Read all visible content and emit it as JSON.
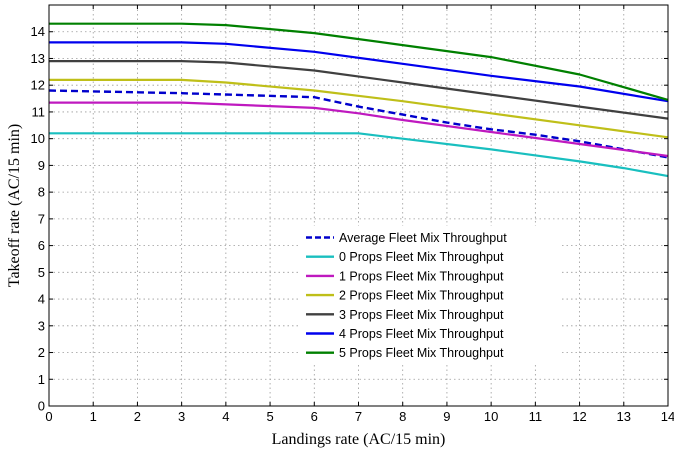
{
  "chart_data": {
    "type": "line",
    "xlabel": "Landings rate (AC/15 min)",
    "ylabel": "Takeoff rate (AC/15 min)",
    "xlim": [
      0,
      14
    ],
    "ylim": [
      0,
      15
    ],
    "xticks": [
      0,
      1,
      2,
      3,
      4,
      5,
      6,
      7,
      8,
      9,
      10,
      11,
      12,
      13,
      14
    ],
    "yticks": [
      0,
      1,
      2,
      3,
      4,
      5,
      6,
      7,
      8,
      9,
      10,
      11,
      12,
      13,
      14
    ],
    "grid": true,
    "legend_position": "center-right",
    "series": [
      {
        "name": "Average  Fleet Mix Throughput",
        "color": "#0000cc",
        "style": "dashed",
        "points": [
          [
            0,
            11.8
          ],
          [
            3,
            11.7
          ],
          [
            6,
            11.55
          ],
          [
            7,
            11.2
          ],
          [
            8,
            10.9
          ],
          [
            9,
            10.6
          ],
          [
            10,
            10.35
          ],
          [
            11,
            10.15
          ],
          [
            12,
            9.9
          ],
          [
            13,
            9.6
          ],
          [
            14,
            9.3
          ]
        ]
      },
      {
        "name": "0 Props Fleet Mix Throughput",
        "color": "#19bfbf",
        "style": "solid",
        "points": [
          [
            0,
            10.2
          ],
          [
            7,
            10.2
          ],
          [
            8,
            10.0
          ],
          [
            10,
            9.6
          ],
          [
            12,
            9.15
          ],
          [
            13,
            8.9
          ],
          [
            14,
            8.6
          ]
        ]
      },
      {
        "name": "1 Props Fleet Mix Throughput",
        "color": "#bf19bf",
        "style": "solid",
        "points": [
          [
            0,
            11.35
          ],
          [
            3,
            11.35
          ],
          [
            6,
            11.15
          ],
          [
            7,
            10.95
          ],
          [
            8,
            10.7
          ],
          [
            10,
            10.25
          ],
          [
            12,
            9.8
          ],
          [
            14,
            9.35
          ]
        ]
      },
      {
        "name": "2 Props Fleet Mix Throughput",
        "color": "#bfbf19",
        "style": "solid",
        "points": [
          [
            0,
            12.2
          ],
          [
            3,
            12.2
          ],
          [
            4,
            12.1
          ],
          [
            6,
            11.8
          ],
          [
            8,
            11.4
          ],
          [
            10,
            10.95
          ],
          [
            12,
            10.5
          ],
          [
            14,
            10.05
          ]
        ]
      },
      {
        "name": "3 Props Fleet Mix Throughput",
        "color": "#404040",
        "style": "solid",
        "points": [
          [
            0,
            12.9
          ],
          [
            3,
            12.9
          ],
          [
            4,
            12.85
          ],
          [
            6,
            12.55
          ],
          [
            8,
            12.1
          ],
          [
            10,
            11.65
          ],
          [
            12,
            11.2
          ],
          [
            14,
            10.75
          ]
        ]
      },
      {
        "name": "4 Props Fleet Mix Throughput",
        "color": "#0000ee",
        "style": "solid",
        "points": [
          [
            0,
            13.6
          ],
          [
            3,
            13.6
          ],
          [
            4,
            13.55
          ],
          [
            6,
            13.25
          ],
          [
            8,
            12.8
          ],
          [
            10,
            12.35
          ],
          [
            12,
            11.95
          ],
          [
            14,
            11.4
          ]
        ]
      },
      {
        "name": "5 Props Fleet Mix Throughput",
        "color": "#008000",
        "style": "solid",
        "points": [
          [
            0,
            14.3
          ],
          [
            3,
            14.3
          ],
          [
            4,
            14.25
          ],
          [
            6,
            13.95
          ],
          [
            8,
            13.5
          ],
          [
            10,
            13.05
          ],
          [
            12,
            12.4
          ],
          [
            14,
            11.45
          ]
        ]
      }
    ]
  }
}
